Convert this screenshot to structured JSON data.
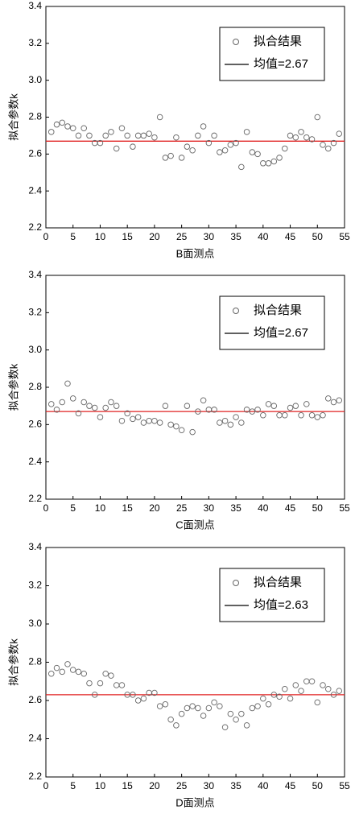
{
  "chart_data": [
    {
      "type": "scatter",
      "xlabel": "B面测点",
      "ylabel": "拟合参数k",
      "legend": "upper right",
      "x": [
        1,
        2,
        3,
        4,
        5,
        6,
        7,
        8,
        9,
        10,
        11,
        12,
        13,
        14,
        15,
        16,
        17,
        18,
        19,
        20,
        21,
        22,
        23,
        24,
        25,
        26,
        27,
        28,
        29,
        30,
        31,
        32,
        33,
        34,
        35,
        36,
        37,
        38,
        39,
        40,
        41,
        42,
        43,
        44,
        45,
        46,
        47,
        48,
        49,
        50,
        51,
        52,
        53,
        54
      ],
      "series": [
        {
          "name": "拟合结果",
          "color": "#666666",
          "values": [
            2.72,
            2.76,
            2.77,
            2.75,
            2.74,
            2.7,
            2.74,
            2.7,
            2.66,
            2.66,
            2.7,
            2.72,
            2.63,
            2.74,
            2.7,
            2.64,
            2.7,
            2.7,
            2.71,
            2.69,
            2.8,
            2.58,
            2.59,
            2.69,
            2.58,
            2.64,
            2.62,
            2.7,
            2.75,
            2.66,
            2.7,
            2.61,
            2.62,
            2.65,
            2.66,
            2.53,
            2.72,
            2.61,
            2.6,
            2.55,
            2.55,
            2.56,
            2.58,
            2.63,
            2.7,
            2.69,
            2.72,
            2.69,
            2.68,
            2.8,
            2.65,
            2.63,
            2.66,
            2.71
          ]
        }
      ],
      "mean_line": {
        "name": "均值=2.67",
        "value": 2.67,
        "color": "#e02020"
      },
      "xlim": [
        0,
        55
      ],
      "xticks": [
        0,
        5,
        10,
        15,
        20,
        25,
        30,
        35,
        40,
        45,
        50,
        55
      ],
      "ylim": [
        2.2,
        3.4
      ],
      "yticks": [
        2.2,
        2.4,
        2.6,
        2.8,
        {
          "value": 3,
          "label": "3.0"
        },
        3.2,
        3.4
      ]
    },
    {
      "type": "scatter",
      "xlabel": "C面测点",
      "ylabel": "拟合参数k",
      "legend": "upper right",
      "x": [
        1,
        2,
        3,
        4,
        5,
        6,
        7,
        8,
        9,
        10,
        11,
        12,
        13,
        14,
        15,
        16,
        17,
        18,
        19,
        20,
        21,
        22,
        23,
        24,
        25,
        26,
        27,
        28,
        29,
        30,
        31,
        32,
        33,
        34,
        35,
        36,
        37,
        38,
        39,
        40,
        41,
        42,
        43,
        44,
        45,
        46,
        47,
        48,
        49,
        50,
        51,
        52,
        53,
        54
      ],
      "series": [
        {
          "name": "拟合结果",
          "color": "#666666",
          "values": [
            2.71,
            2.68,
            2.72,
            2.82,
            2.74,
            2.66,
            2.72,
            2.7,
            2.69,
            2.64,
            2.69,
            2.72,
            2.7,
            2.62,
            2.66,
            2.63,
            2.64,
            2.61,
            2.62,
            2.62,
            2.61,
            2.7,
            2.6,
            2.59,
            2.57,
            2.7,
            2.56,
            2.67,
            2.73,
            2.68,
            2.68,
            2.61,
            2.62,
            2.6,
            2.64,
            2.61,
            2.68,
            2.67,
            2.68,
            2.65,
            2.71,
            2.7,
            2.65,
            2.65,
            2.69,
            2.7,
            2.65,
            2.71,
            2.65,
            2.64,
            2.65,
            2.74,
            2.72,
            2.73
          ]
        }
      ],
      "mean_line": {
        "name": "均值=2.67",
        "value": 2.67,
        "color": "#e02020"
      },
      "xlim": [
        0,
        55
      ],
      "xticks": [
        0,
        5,
        10,
        15,
        20,
        25,
        30,
        35,
        40,
        45,
        50,
        55
      ],
      "ylim": [
        2.2,
        3.4
      ],
      "yticks": [
        2.2,
        2.4,
        2.6,
        2.8,
        {
          "value": 3,
          "label": "3.0"
        },
        3.2,
        3.4
      ]
    },
    {
      "type": "scatter",
      "xlabel": "D面测点",
      "ylabel": "拟合参数k",
      "legend": "upper right",
      "x": [
        1,
        2,
        3,
        4,
        5,
        6,
        7,
        8,
        9,
        10,
        11,
        12,
        13,
        14,
        15,
        16,
        17,
        18,
        19,
        20,
        21,
        22,
        23,
        24,
        25,
        26,
        27,
        28,
        29,
        30,
        31,
        32,
        33,
        34,
        35,
        36,
        37,
        38,
        39,
        40,
        41,
        42,
        43,
        44,
        45,
        46,
        47,
        48,
        49,
        50,
        51,
        52,
        53,
        54
      ],
      "series": [
        {
          "name": "拟合结果",
          "color": "#666666",
          "values": [
            2.74,
            2.77,
            2.75,
            2.79,
            2.76,
            2.75,
            2.74,
            2.69,
            2.63,
            2.69,
            2.74,
            2.73,
            2.68,
            2.68,
            2.63,
            2.63,
            2.6,
            2.61,
            2.64,
            2.64,
            2.57,
            2.58,
            2.5,
            2.47,
            2.53,
            2.56,
            2.57,
            2.56,
            2.52,
            2.56,
            2.59,
            2.57,
            2.46,
            2.53,
            2.5,
            2.53,
            2.47,
            2.56,
            2.57,
            2.61,
            2.58,
            2.63,
            2.62,
            2.66,
            2.61,
            2.68,
            2.65,
            2.7,
            2.7,
            2.59,
            2.68,
            2.66,
            2.63,
            2.65
          ]
        }
      ],
      "mean_line": {
        "name": "均值=2.63",
        "value": 2.63,
        "color": "#e02020"
      },
      "xlim": [
        0,
        55
      ],
      "xticks": [
        0,
        5,
        10,
        15,
        20,
        25,
        30,
        35,
        40,
        45,
        50,
        55
      ],
      "ylim": [
        2.2,
        3.4
      ],
      "yticks": [
        2.2,
        2.4,
        2.6,
        2.8,
        {
          "value": 3,
          "label": "3.0"
        },
        3.2,
        3.4
      ]
    }
  ]
}
